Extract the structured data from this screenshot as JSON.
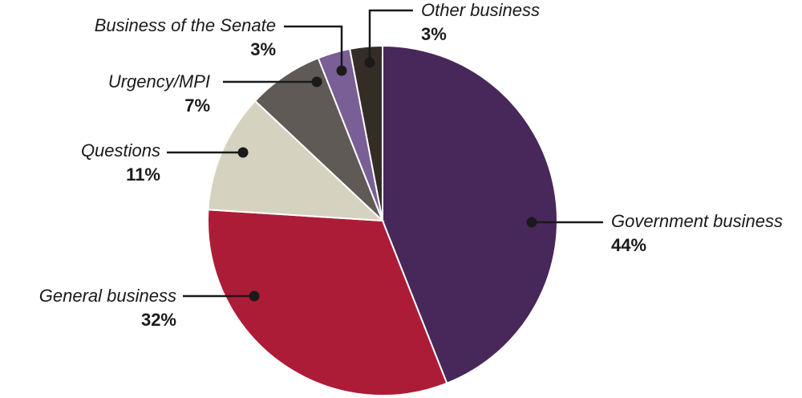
{
  "chart_data": {
    "type": "pie",
    "title": "",
    "unit": "%",
    "slices": [
      {
        "label": "Government business",
        "value": 44,
        "value_label": "44%",
        "color": "#48275a"
      },
      {
        "label": "General business",
        "value": 32,
        "value_label": "32%",
        "color": "#ad1c36"
      },
      {
        "label": "Questions",
        "value": 11,
        "value_label": "11%",
        "color": "#d5d3c0"
      },
      {
        "label": "Urgency/MPI",
        "value": 7,
        "value_label": "7%",
        "color": "#5f5a56"
      },
      {
        "label": "Business of the Senate",
        "value": 3,
        "value_label": "3%",
        "color": "#7a5f96"
      },
      {
        "label": "Other business",
        "value": 3,
        "value_label": "3%",
        "color": "#342d25"
      }
    ],
    "start_angle": "12 o'clock",
    "direction": "clockwise",
    "legend": "none (direct labels with leader lines)"
  }
}
